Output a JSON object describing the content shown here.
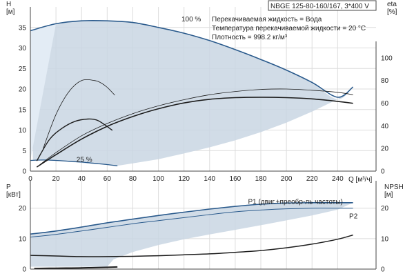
{
  "header": {
    "model": "NBGE 125-80-160/167, 3*400 V",
    "info": [
      "Перекачиваемая жидкость = Вода",
      "Температура перекачиваемой жидкости = 20 °C",
      "Плотность = 998.2 кг/м³"
    ]
  },
  "colors": {
    "curve_dark": "#1c1c1c",
    "curve_blue": "#2a5a8c",
    "band_fill": "#c9d6e3",
    "band_fill_light": "#e3ecf5",
    "grid": "#dcdcdc"
  },
  "chart_data": [
    {
      "type": "line",
      "panel": "head_efficiency",
      "xlabel": "Q [м³/ч]",
      "ylabel_left": "H [м]",
      "ylabel_right": "eta [%]",
      "xlim": [
        0,
        270
      ],
      "ylim_left": [
        0,
        40
      ],
      "ylim_right": [
        0,
        145
      ],
      "xticks": [
        0,
        20,
        40,
        60,
        80,
        100,
        120,
        140,
        160,
        180,
        200,
        220,
        240
      ],
      "yticks_left": [
        0,
        5,
        10,
        15,
        20,
        25,
        30,
        35
      ],
      "yticks_right": [
        0,
        20,
        40,
        60,
        80,
        100
      ],
      "grid": true,
      "annotations": [
        {
          "text": "100 %",
          "x": 118,
          "y": 36.5
        },
        {
          "text": "25 %",
          "x": 36,
          "y": 2.3
        }
      ],
      "operating_range": {
        "upper": [
          [
            0,
            34.2
          ],
          [
            20,
            35.9
          ],
          [
            40,
            36.6
          ],
          [
            60,
            36.6
          ],
          [
            80,
            36.2
          ],
          [
            100,
            35.0
          ],
          [
            120,
            33.6
          ],
          [
            140,
            31.8
          ],
          [
            160,
            29.6
          ],
          [
            180,
            27.2
          ],
          [
            200,
            24.6
          ],
          [
            220,
            21.4
          ],
          [
            240,
            17.5
          ],
          [
            252,
            20.5
          ]
        ],
        "lower": [
          [
            252,
            20.5
          ],
          [
            240,
            17.5
          ],
          [
            220,
            14.5
          ],
          [
            200,
            11.8
          ],
          [
            180,
            9.5
          ],
          [
            160,
            7.5
          ],
          [
            140,
            5.8
          ],
          [
            120,
            4.3
          ],
          [
            100,
            2.9
          ],
          [
            80,
            1.9
          ],
          [
            68,
            1.3
          ],
          [
            60,
            1.5
          ],
          [
            40,
            2.0
          ],
          [
            20,
            2.5
          ],
          [
            2,
            2.7
          ]
        ]
      },
      "series": [
        {
          "axis": "left",
          "color": "#2a5a8c",
          "width": 1.6,
          "x": [
            0,
            20,
            40,
            60,
            80,
            100,
            120,
            140,
            160,
            180,
            200,
            220,
            240,
            252
          ],
          "values": [
            34.2,
            35.9,
            36.6,
            36.6,
            36.2,
            35.0,
            33.6,
            31.8,
            29.6,
            27.2,
            24.6,
            21.6,
            18.0,
            20.5
          ]
        },
        {
          "axis": "left",
          "color": "#2a5a8c",
          "width": 1.3,
          "x": [
            0,
            10,
            20,
            30,
            40,
            50,
            60,
            68
          ],
          "values": [
            2.6,
            2.7,
            2.6,
            2.4,
            2.2,
            1.9,
            1.6,
            1.3
          ]
        },
        {
          "axis": "right",
          "color": "#1c1c1c",
          "width": 0.8,
          "x": [
            10,
            20,
            30,
            40,
            50,
            55,
            60,
            66
          ],
          "values": [
            20,
            50,
            70,
            80,
            80,
            78,
            74,
            67
          ]
        },
        {
          "axis": "right",
          "color": "#1c1c1c",
          "width": 1.4,
          "x": [
            5,
            15,
            25,
            35,
            45,
            52,
            58,
            64
          ],
          "values": [
            9,
            28,
            38,
            44,
            46,
            45,
            41,
            36
          ]
        },
        {
          "axis": "left",
          "color": "#1c1c1c",
          "width": 0.8,
          "x": [
            5,
            20,
            40,
            60,
            80,
            100,
            120,
            140,
            160,
            180,
            200,
            220,
            240,
            252
          ],
          "values": [
            1.0,
            4.5,
            8.6,
            11.6,
            14.0,
            15.9,
            17.4,
            18.6,
            19.4,
            19.9,
            20.0,
            19.7,
            19.2,
            18.6
          ]
        },
        {
          "axis": "left",
          "color": "#1c1c1c",
          "width": 1.6,
          "x": [
            5,
            20,
            40,
            60,
            80,
            100,
            120,
            140,
            160,
            180,
            200,
            220,
            240,
            252
          ],
          "values": [
            1.0,
            4.0,
            7.8,
            10.9,
            13.3,
            15.2,
            16.6,
            17.5,
            17.9,
            18.0,
            17.9,
            17.6,
            17.0,
            16.5
          ]
        }
      ]
    },
    {
      "type": "line",
      "panel": "power_npsh",
      "ylabel_left": "P [кВт]",
      "ylabel_right": "NPSH [м]",
      "xlim": [
        0,
        270
      ],
      "ylim_left": [
        0,
        29
      ],
      "ylim_right": [
        0,
        29
      ],
      "yticks_left": [
        0,
        10,
        20
      ],
      "yticks_right": [
        0,
        10,
        20
      ],
      "grid": true,
      "annotations": [
        {
          "text": "P1 (двиг.+преобр-ль частоты)",
          "x": 170,
          "y": 21.4
        },
        {
          "text": "P2",
          "x": 249,
          "y": 16.6
        }
      ],
      "operating_range": {
        "upper": [
          [
            0,
            11.5
          ],
          [
            20,
            12.5
          ],
          [
            40,
            13.8
          ],
          [
            60,
            15.2
          ],
          [
            80,
            16.4
          ],
          [
            100,
            17.6
          ],
          [
            120,
            18.7
          ],
          [
            140,
            19.7
          ],
          [
            160,
            20.6
          ],
          [
            180,
            21.3
          ],
          [
            200,
            21.7
          ],
          [
            220,
            21.8
          ],
          [
            240,
            21.8
          ],
          [
            252,
            21.8
          ]
        ],
        "lower": [
          [
            252,
            21.8
          ],
          [
            240,
            19.5
          ],
          [
            220,
            17.6
          ],
          [
            200,
            16.0
          ],
          [
            180,
            14.4
          ],
          [
            160,
            12.9
          ],
          [
            140,
            11.4
          ],
          [
            120,
            9.8
          ],
          [
            100,
            7.9
          ],
          [
            80,
            5.6
          ],
          [
            65,
            3.2
          ],
          [
            60,
            0.8
          ],
          [
            0,
            0.8
          ]
        ]
      },
      "series": [
        {
          "axis": "left",
          "color": "#2a5a8c",
          "width": 1.6,
          "x": [
            0,
            20,
            40,
            60,
            80,
            100,
            120,
            140,
            160,
            180,
            200,
            220,
            240,
            252
          ],
          "values": [
            11.5,
            12.5,
            13.8,
            15.2,
            16.4,
            17.6,
            18.7,
            19.7,
            20.6,
            21.3,
            21.7,
            21.8,
            21.8,
            21.8
          ]
        },
        {
          "axis": "left",
          "color": "#2a5a8c",
          "width": 1.0,
          "x": [
            0,
            20,
            40,
            60,
            80,
            100,
            120,
            140,
            160,
            180,
            200,
            220,
            240,
            252
          ],
          "values": [
            10.5,
            11.4,
            12.5,
            13.7,
            14.9,
            15.9,
            16.9,
            17.9,
            18.8,
            19.4,
            19.8,
            20.0,
            20.0,
            20.0
          ]
        },
        {
          "axis": "right",
          "color": "#1c1c1c",
          "width": 1.5,
          "x": [
            0,
            20,
            40,
            60,
            80,
            100,
            120,
            140,
            160,
            180,
            200,
            220,
            240,
            252
          ],
          "values": [
            4.5,
            4.3,
            4.1,
            4.1,
            4.2,
            4.4,
            4.7,
            5.0,
            5.5,
            6.1,
            7.0,
            8.2,
            9.8,
            11.2
          ]
        },
        {
          "axis": "left",
          "color": "#1c1c1c",
          "width": 2.0,
          "x": [
            3,
            20,
            40,
            60,
            68
          ],
          "values": [
            0.2,
            0.3,
            0.4,
            0.6,
            0.7
          ]
        }
      ]
    }
  ]
}
